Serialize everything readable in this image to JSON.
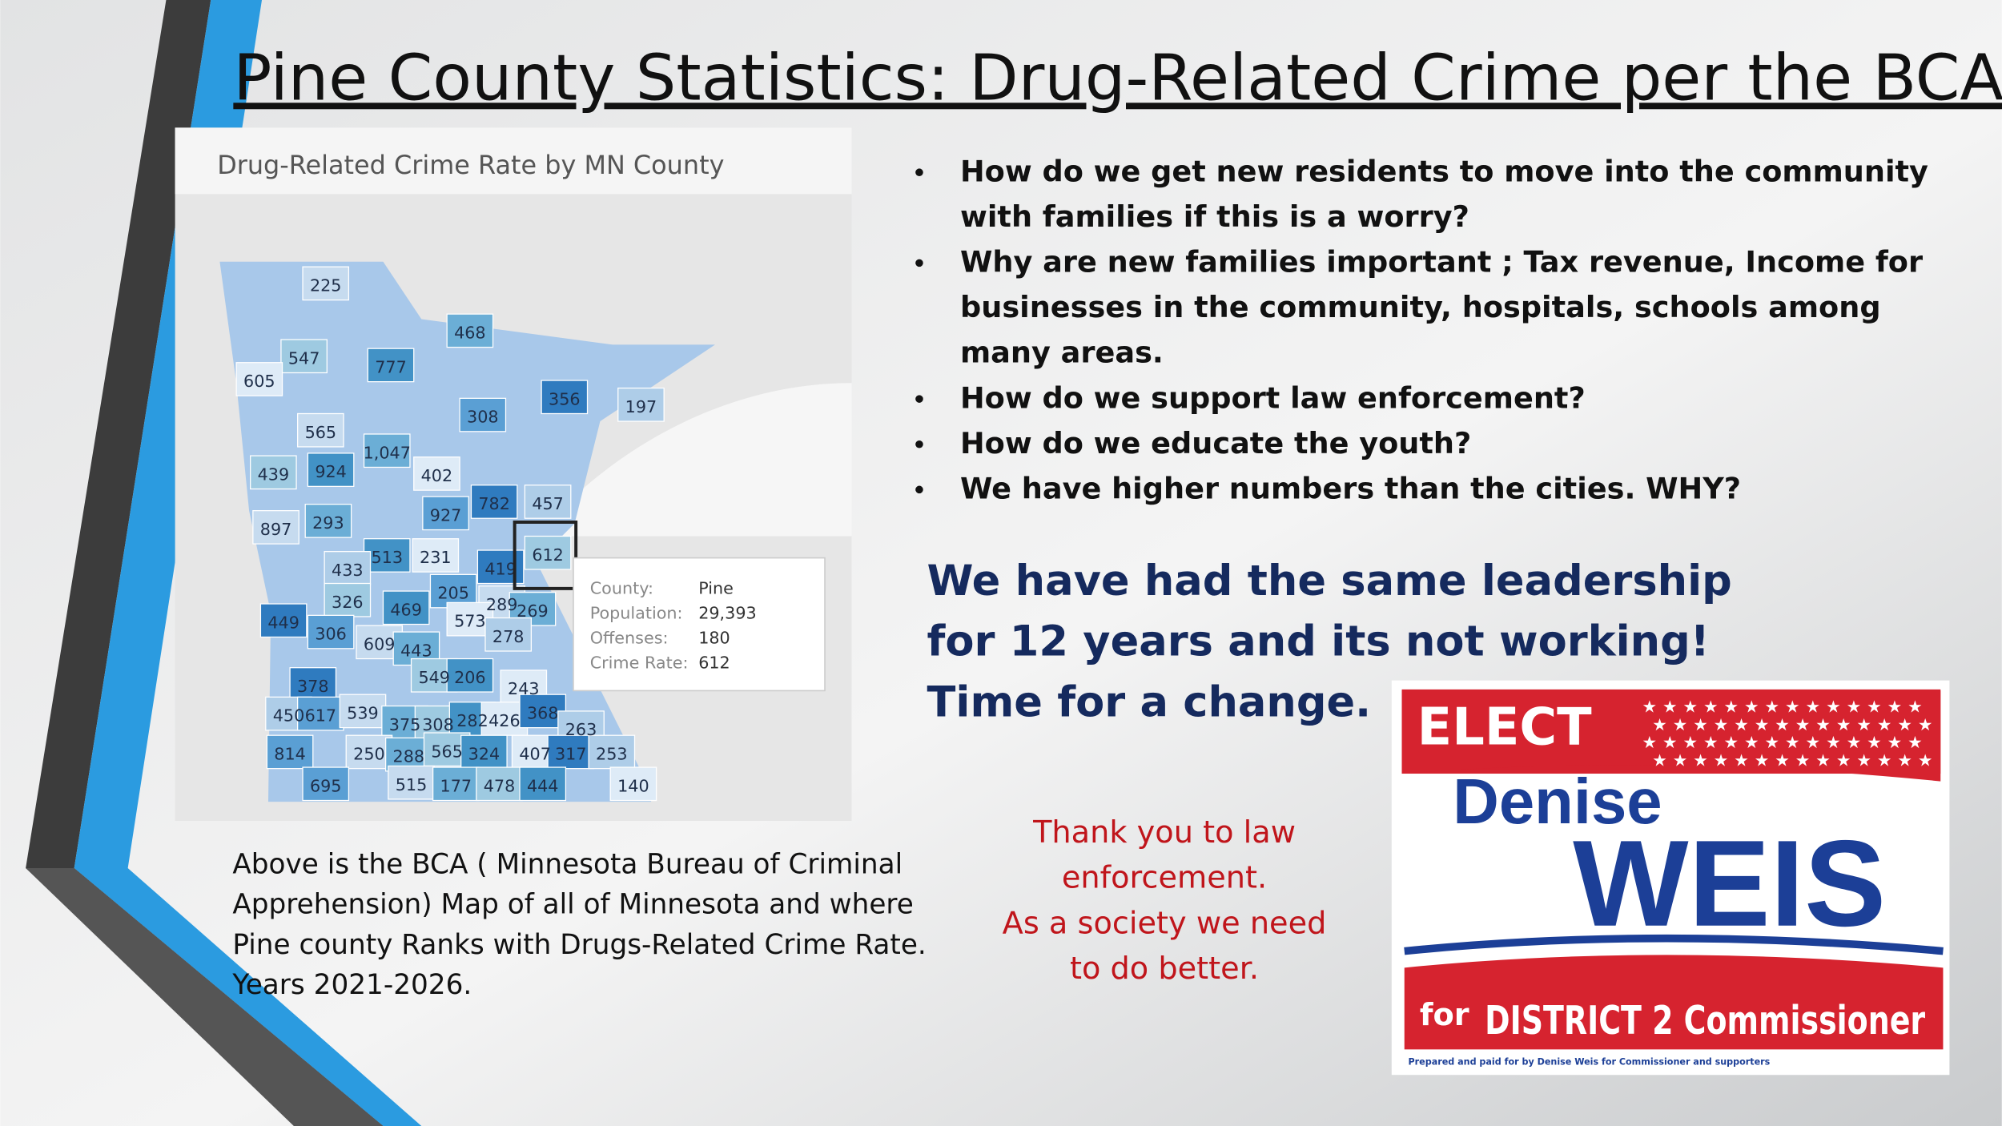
{
  "title": "Pine County Statistics: Drug-Related Crime per the BCA",
  "map": {
    "title": "Drug-Related Crime Rate by MN County",
    "labels": [
      "225",
      "468",
      "547",
      "777",
      "605",
      "356",
      "197",
      "308",
      "565",
      "1,047",
      "439",
      "924",
      "402",
      "782",
      "457",
      "927",
      "897",
      "293",
      "612",
      "513",
      "231",
      "419",
      "433",
      "205",
      "289",
      "269",
      "326",
      "469",
      "573",
      "449",
      "278",
      "306",
      "609",
      "443",
      "549",
      "206",
      "243",
      "378",
      "450",
      "617",
      "539",
      "375",
      "308",
      "282",
      "426",
      "368",
      "263",
      "814",
      "250",
      "288",
      "565",
      "324",
      "407",
      "317",
      "253",
      "695",
      "515",
      "177",
      "478",
      "444",
      "140"
    ],
    "tooltip": [
      {
        "key": "County:",
        "value": "Pine"
      },
      {
        "key": "Population:",
        "value": "29,393"
      },
      {
        "key": "Offenses:",
        "value": "180"
      },
      {
        "key": "Crime Rate:",
        "value": "612"
      }
    ]
  },
  "bullets": [
    [
      "How do we get new residents to move into the community",
      "with families if this is a worry?"
    ],
    [
      "Why are new families important ; Tax revenue, Income for",
      "businesses in the community, hospitals, schools among",
      "many areas."
    ],
    [
      "How do we support law enforcement?"
    ],
    [
      "How do we educate the youth?"
    ],
    [
      "We have higher numbers than the cities.  WHY?"
    ]
  ],
  "callout": [
    "We have had the same leadership",
    "for 12 years and its not working!",
    "Time for a change."
  ],
  "caption": [
    "Above is the BCA ( Minnesota Bureau of Criminal",
    "Apprehension) Map of all of Minnesota and where",
    "Pine county Ranks with Drugs-Related Crime Rate.",
    "Years 2021-2026."
  ],
  "thanks": [
    "Thank you to law",
    "enforcement.",
    "As a society we need",
    "to do better."
  ],
  "sign": {
    "elect": "ELECT",
    "first": "Denise",
    "last": "WEIS",
    "prefix": "for",
    "district": "DISTRICT 2 Commissioner",
    "disclaimer": "Prepared and paid for by Denise Weis for Commissioner and supporters"
  }
}
